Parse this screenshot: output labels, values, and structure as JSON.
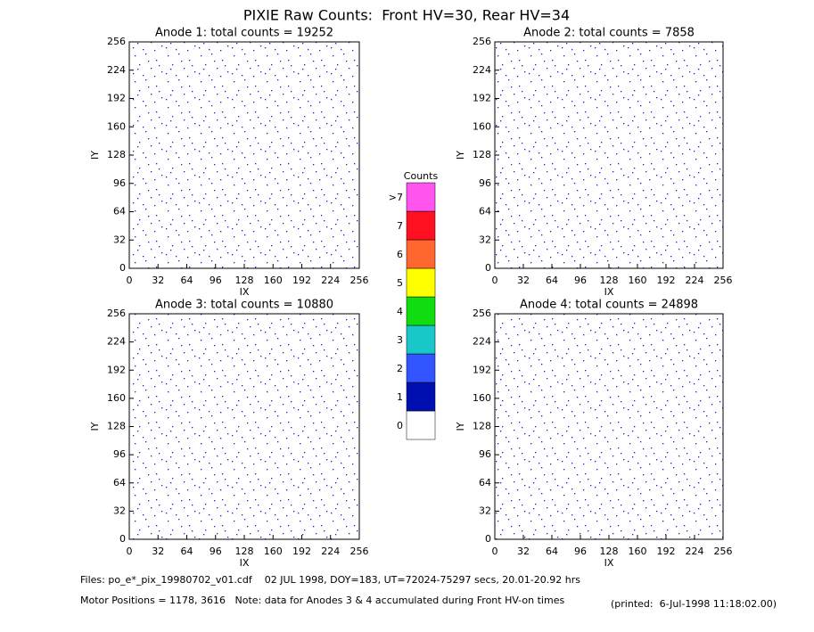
{
  "title": "PIXIE Raw Counts:  Front HV=30, Rear HV=34",
  "chart_data": [
    {
      "type": "heatmap",
      "title": "Anode 1: total counts = 19252",
      "xlabel": "IX",
      "ylabel": "IY",
      "xlim": [
        0,
        256
      ],
      "ylim": [
        0,
        256
      ],
      "xticks": [
        0,
        32,
        64,
        96,
        128,
        160,
        192,
        224,
        256
      ],
      "yticks": [
        0,
        32,
        64,
        96,
        128,
        160,
        192,
        224,
        256
      ]
    },
    {
      "type": "heatmap",
      "title": "Anode 2: total counts = 7858",
      "xlabel": "IX",
      "ylabel": "IY",
      "xlim": [
        0,
        256
      ],
      "ylim": [
        0,
        256
      ],
      "xticks": [
        0,
        32,
        64,
        96,
        128,
        160,
        192,
        224,
        256
      ],
      "yticks": [
        0,
        32,
        64,
        96,
        128,
        160,
        192,
        224,
        256
      ]
    },
    {
      "type": "heatmap",
      "title": "Anode 3: total counts = 10880",
      "xlabel": "IX",
      "ylabel": "IY",
      "xlim": [
        0,
        256
      ],
      "ylim": [
        0,
        256
      ],
      "xticks": [
        0,
        32,
        64,
        96,
        128,
        160,
        192,
        224,
        256
      ],
      "yticks": [
        0,
        32,
        64,
        96,
        128,
        160,
        192,
        224,
        256
      ]
    },
    {
      "type": "heatmap",
      "title": "Anode 4: total counts = 24898",
      "xlabel": "IX",
      "ylabel": "IY",
      "xlim": [
        0,
        256
      ],
      "ylim": [
        0,
        256
      ],
      "xticks": [
        0,
        32,
        64,
        96,
        128,
        160,
        192,
        224,
        256
      ],
      "yticks": [
        0,
        32,
        64,
        96,
        128,
        160,
        192,
        224,
        256
      ]
    }
  ],
  "colorbar": {
    "title": "Counts",
    "levels": [
      {
        "label": "0",
        "color": "#ffffff"
      },
      {
        "label": "1",
        "color": "#0010b0"
      },
      {
        "label": "2",
        "color": "#3355ff"
      },
      {
        "label": "3",
        "color": "#18c8c8"
      },
      {
        "label": "4",
        "color": "#10dd10"
      },
      {
        "label": "5",
        "color": "#ffff00"
      },
      {
        "label": "6",
        "color": "#ff6630"
      },
      {
        "label": "7",
        "color": "#ff1020"
      },
      {
        "label": ">7",
        "color": "#ff55ee"
      }
    ]
  },
  "footer": {
    "files": "Files: po_e*_pix_19980702_v01.cdf    02 JUL 1998, DOY=183, UT=72024-75297 secs, 20.01-20.92 hrs",
    "motor": "Motor Positions = 1178, 3616   Note: data for Anodes 3 & 4 accumulated during Front HV-on times",
    "printed": "(printed:  6-Jul-1998 11:18:02.00)"
  }
}
